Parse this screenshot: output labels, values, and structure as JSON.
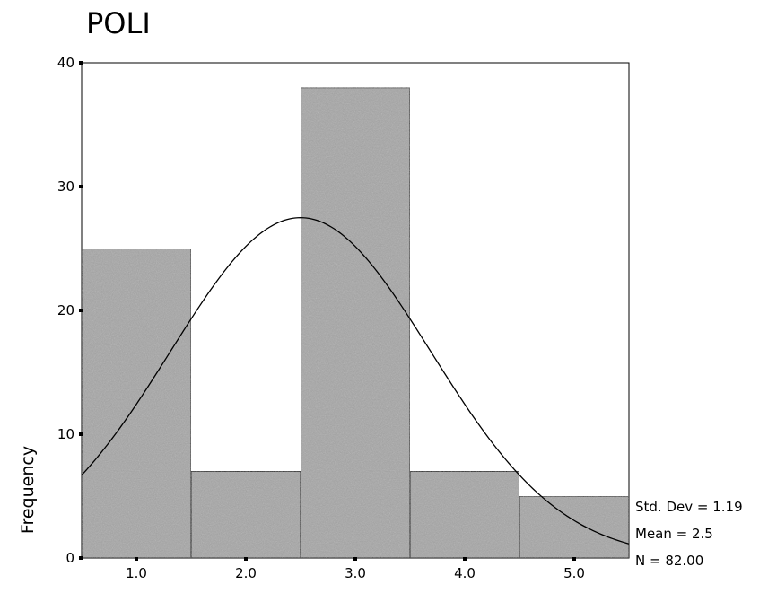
{
  "chart_data": {
    "type": "bar",
    "title": "POLI",
    "ylabel": "Frequency",
    "xlabel": "",
    "categories": [
      "1.0",
      "2.0",
      "3.0",
      "4.0",
      "5.0"
    ],
    "bin_centers": [
      1,
      2,
      3,
      4,
      5
    ],
    "values": [
      25,
      7,
      38,
      7,
      5
    ],
    "xlim": [
      0.5,
      5.5
    ],
    "ylim": [
      0,
      40
    ],
    "y_ticks": [
      0,
      10,
      20,
      30,
      40
    ],
    "normal_curve": true,
    "bar_color": "#a6a6a6",
    "stats": {
      "std_dev": "Std. Dev = 1.19",
      "mean": "Mean = 2.5",
      "n": "N = 82.00"
    },
    "std_dev": 1.19,
    "mean": 2.5,
    "n": 82
  }
}
